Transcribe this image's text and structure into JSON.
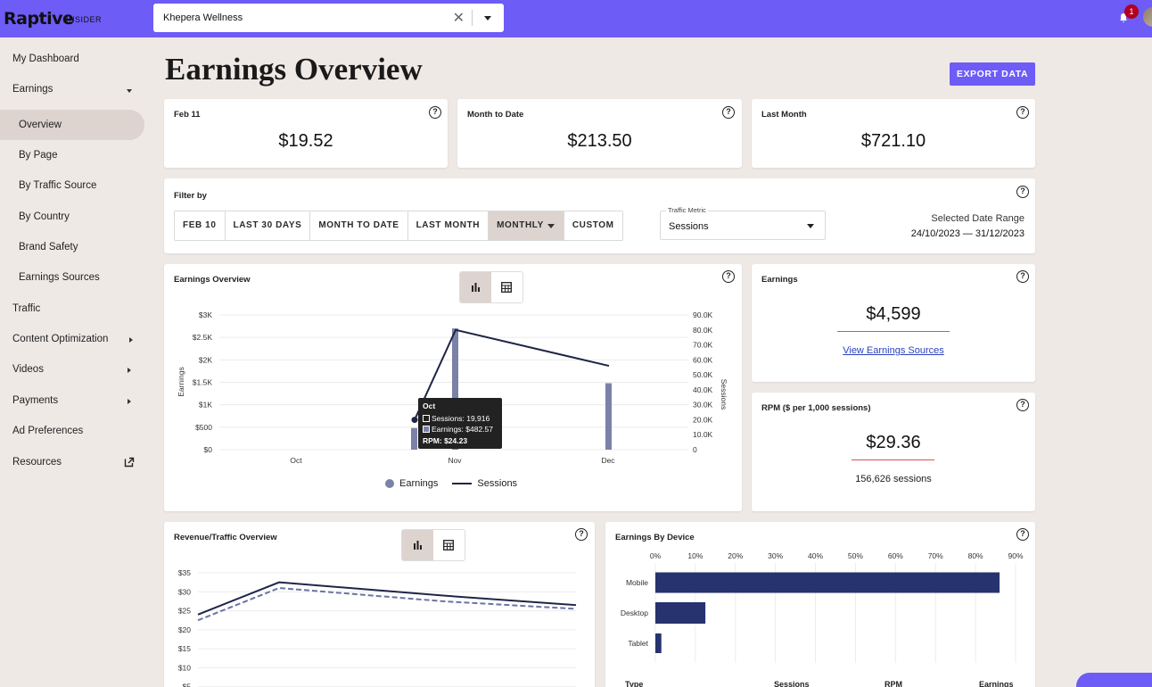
{
  "header": {
    "logo": "Raptive",
    "logo_sub": "INSIDER",
    "site_select": {
      "value": "Khepera Wellness"
    },
    "notification_count": "1"
  },
  "sidebar": {
    "items": [
      {
        "label": "My Dashboard"
      },
      {
        "label": "Earnings"
      },
      {
        "label": "Overview"
      },
      {
        "label": "By Page"
      },
      {
        "label": "By Traffic Source"
      },
      {
        "label": "By Country"
      },
      {
        "label": "Brand Safety"
      },
      {
        "label": "Earnings Sources"
      },
      {
        "label": "Traffic"
      },
      {
        "label": "Content Optimization"
      },
      {
        "label": "Videos"
      },
      {
        "label": "Payments"
      },
      {
        "label": "Ad Preferences"
      },
      {
        "label": "Resources"
      }
    ]
  },
  "page": {
    "title": "Earnings Overview",
    "export_label": "EXPORT DATA"
  },
  "summary": [
    {
      "label": "Feb 11",
      "value": "$19.52"
    },
    {
      "label": "Month to Date",
      "value": "$213.50"
    },
    {
      "label": "Last Month",
      "value": "$721.10"
    }
  ],
  "filter": {
    "label": "Filter by",
    "buttons": [
      "FEB 10",
      "LAST 30 DAYS",
      "MONTH TO DATE",
      "LAST MONTH",
      "MONTHLY",
      "CUSTOM"
    ],
    "active": "MONTHLY",
    "metric_legend": "Traffic Metric",
    "metric_value": "Sessions",
    "range_label": "Selected Date Range",
    "range_value": "24/10/2023 — 31/12/2023"
  },
  "earnings_chart": {
    "title": "Earnings Overview",
    "legend_earnings": "Earnings",
    "legend_sessions": "Sessions",
    "tooltip": {
      "title": "Oct",
      "sessions": "Sessions: 19,916",
      "earnings": "Earnings: $482.57",
      "rpm": "RPM: $24.23"
    }
  },
  "earnings_card": {
    "label": "Earnings",
    "value": "$4,599",
    "link": "View Earnings Sources"
  },
  "rpm_card": {
    "label": "RPM ($ per 1,000 sessions)",
    "value": "$29.36",
    "sessions": "156,626 sessions"
  },
  "revenue_chart": {
    "title": "Revenue/Traffic Overview"
  },
  "device_chart": {
    "title": "Earnings By Device",
    "table_headers": [
      "Type",
      "Sessions",
      "RPM",
      "Earnings"
    ]
  },
  "chart_data": [
    {
      "type": "bar",
      "title": "Earnings Overview",
      "categories": [
        "Oct",
        "Nov",
        "Dec"
      ],
      "ylabel": "Earnings",
      "ylabel_right": "Sessions",
      "ylim": [
        0,
        3000
      ],
      "ylim_right": [
        0,
        90000
      ],
      "yticks": [
        "$0",
        "$500",
        "$1K",
        "$1.5K",
        "$2K",
        "$2.5K",
        "$3K"
      ],
      "yticks_right": [
        "0",
        "10.0K",
        "20.0K",
        "30.0K",
        "40.0K",
        "50.0K",
        "60.0K",
        "70.0K",
        "80.0K",
        "90.0K"
      ],
      "series": [
        {
          "name": "Earnings",
          "type": "bar",
          "values": [
            482.57,
            2700,
            1480
          ]
        },
        {
          "name": "Sessions",
          "type": "line",
          "values": [
            19916,
            80000,
            56000
          ]
        }
      ],
      "colors": {
        "bars": "#7b82a8",
        "line": "#1f2547"
      },
      "legend": "bottom"
    },
    {
      "type": "line",
      "title": "Revenue/Traffic Overview",
      "yticks": [
        "$5",
        "$10",
        "$15",
        "$20",
        "$25",
        "$30",
        "$35"
      ],
      "ylim": [
        0,
        35
      ],
      "series": [
        {
          "values": [
            24,
            32.5,
            29,
            26.5
          ],
          "style": "solid"
        },
        {
          "values": [
            22.5,
            31,
            27.5,
            25.5
          ],
          "style": "dashed"
        }
      ]
    },
    {
      "type": "bar",
      "title": "Earnings By Device",
      "orientation": "horizontal",
      "categories": [
        "Mobile",
        "Desktop",
        "Tablet"
      ],
      "values": [
        86,
        12.5,
        1.5
      ],
      "xticks": [
        "0%",
        "10%",
        "20%",
        "30%",
        "40%",
        "50%",
        "60%",
        "70%",
        "80%",
        "90%"
      ],
      "xlim": [
        0,
        90
      ],
      "color": "#27336e"
    }
  ]
}
